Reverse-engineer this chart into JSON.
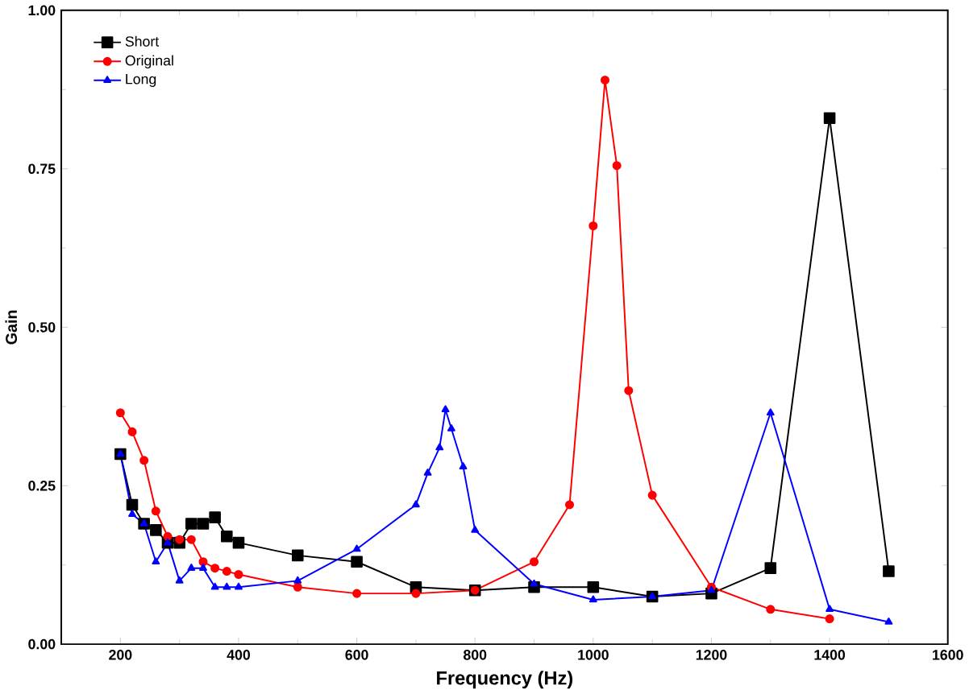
{
  "chart_data": {
    "type": "line",
    "xlabel": "Frequency (Hz)",
    "ylabel": "Gain",
    "xlim": [
      100,
      1600
    ],
    "xticks": [
      200,
      400,
      600,
      800,
      1000,
      1200,
      1400,
      1600
    ],
    "ylim": [
      0,
      1
    ],
    "yticks": [
      {
        "value": 0,
        "label": "0.00"
      },
      {
        "value": 0.25,
        "label": "0.25"
      },
      {
        "value": 0.5,
        "label": "0.50"
      },
      {
        "value": 0.75,
        "label": "0.75"
      },
      {
        "value": 1,
        "label": "1.00"
      }
    ],
    "legend": "top left",
    "grid": false,
    "series": [
      {
        "name": "Short",
        "color": "#000000",
        "marker": "square",
        "x": [
          200,
          220,
          240,
          260,
          280,
          300,
          320,
          340,
          360,
          380,
          400,
          500,
          600,
          700,
          800,
          900,
          1000,
          1100,
          1200,
          1300,
          1400,
          1500
        ],
        "values": [
          0.3,
          0.22,
          0.19,
          0.18,
          0.16,
          0.16,
          0.19,
          0.19,
          0.2,
          0.17,
          0.16,
          0.14,
          0.13,
          0.09,
          0.085,
          0.09,
          0.09,
          0.075,
          0.08,
          0.12,
          0.83,
          0.115
        ]
      },
      {
        "name": "Original",
        "color": "#ff0000",
        "marker": "circle",
        "x": [
          200,
          220,
          240,
          260,
          280,
          300,
          320,
          340,
          360,
          380,
          400,
          500,
          600,
          700,
          800,
          900,
          960,
          1000,
          1020,
          1040,
          1060,
          1100,
          1200,
          1300,
          1400
        ],
        "values": [
          0.365,
          0.335,
          0.29,
          0.21,
          0.17,
          0.165,
          0.165,
          0.13,
          0.12,
          0.115,
          0.11,
          0.09,
          0.08,
          0.08,
          0.085,
          0.13,
          0.22,
          0.66,
          0.89,
          0.755,
          0.4,
          0.235,
          0.09,
          0.055,
          0.04
        ]
      },
      {
        "name": "Long",
        "color": "#0000ff",
        "marker": "triangle",
        "x": [
          200,
          220,
          240,
          260,
          280,
          300,
          320,
          340,
          360,
          380,
          400,
          500,
          600,
          700,
          720,
          740,
          750,
          760,
          780,
          800,
          900,
          1000,
          1100,
          1200,
          1300,
          1400,
          1500
        ],
        "values": [
          0.3,
          0.205,
          0.19,
          0.13,
          0.16,
          0.1,
          0.12,
          0.12,
          0.09,
          0.09,
          0.09,
          0.1,
          0.15,
          0.22,
          0.27,
          0.31,
          0.37,
          0.34,
          0.28,
          0.18,
          0.095,
          0.07,
          0.075,
          0.085,
          0.365,
          0.055,
          0.035
        ]
      }
    ]
  }
}
